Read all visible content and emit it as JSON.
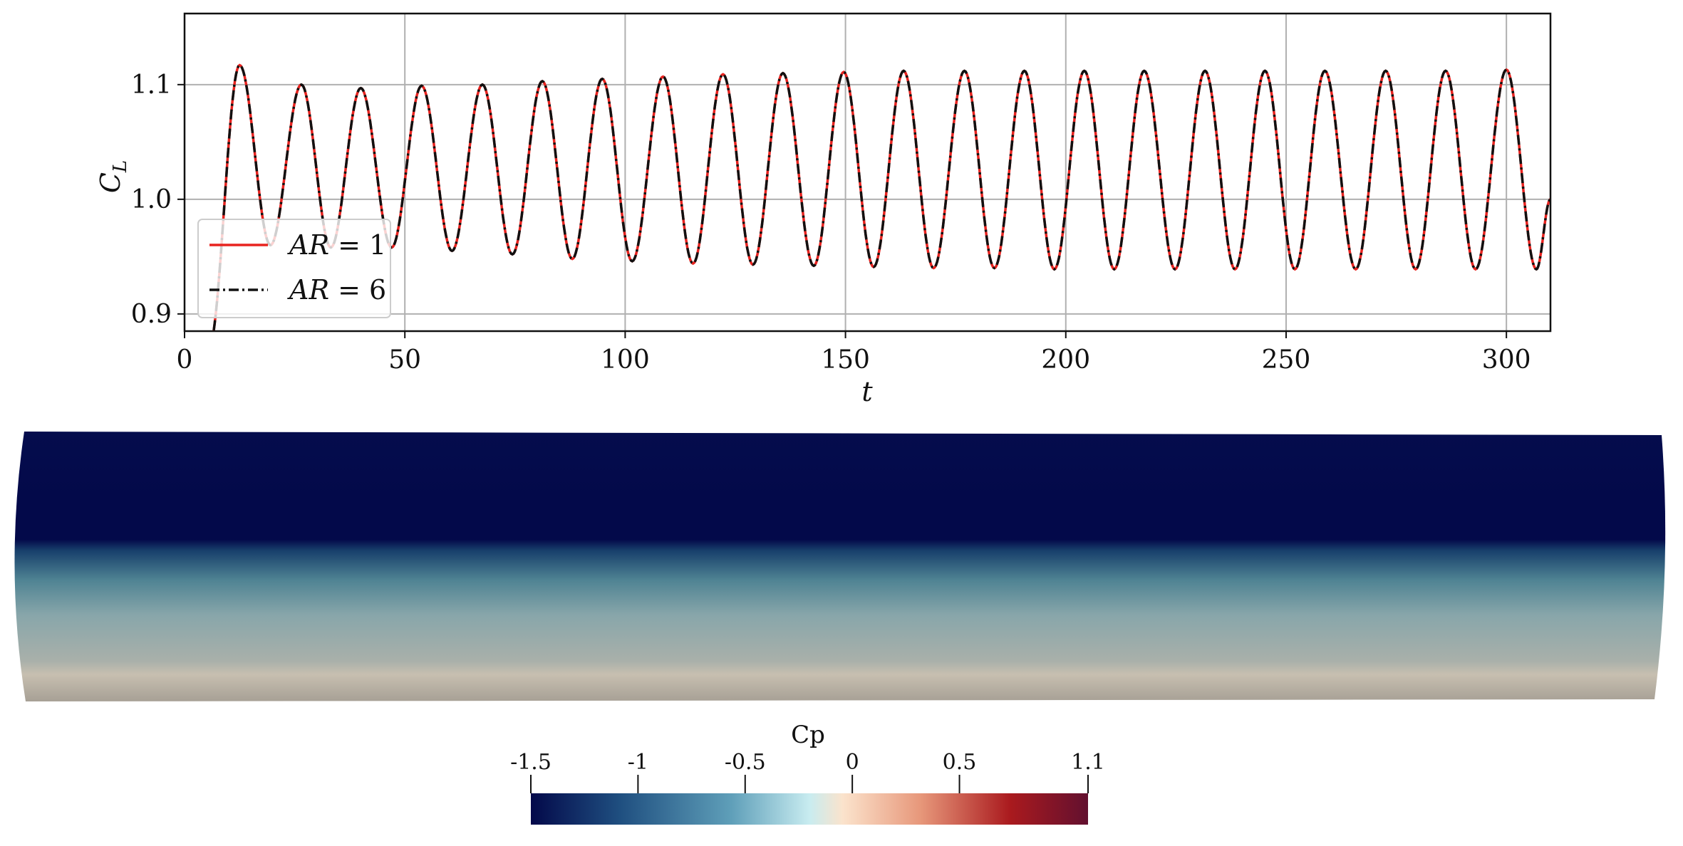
{
  "chart_data": {
    "type": "line",
    "xlabel": "t",
    "ylabel": "C_L",
    "xlim": [
      0,
      310
    ],
    "ylim": [
      0.885,
      1.162
    ],
    "xticks": [
      0,
      50,
      100,
      150,
      200,
      250,
      300
    ],
    "xtick_labels": [
      "0",
      "50",
      "100",
      "150",
      "200",
      "250",
      "300"
    ],
    "yticks": [
      0.9,
      1.0,
      1.1
    ],
    "ytick_labels": [
      "0.9",
      "1.0",
      "1.1"
    ],
    "grid": true,
    "legend_position": "lower-left",
    "period": 13.6,
    "peaks": [
      {
        "t": 12.5,
        "v": 1.117
      },
      {
        "t": 26.5,
        "v": 1.1
      },
      {
        "t": 40.0,
        "v": 1.097
      },
      {
        "t": 53.8,
        "v": 1.099
      },
      {
        "t": 67.6,
        "v": 1.1
      },
      {
        "t": 81.2,
        "v": 1.103
      },
      {
        "t": 94.8,
        "v": 1.105
      },
      {
        "t": 108.6,
        "v": 1.107
      },
      {
        "t": 122.2,
        "v": 1.109
      },
      {
        "t": 135.8,
        "v": 1.11
      },
      {
        "t": 149.6,
        "v": 1.111
      },
      {
        "t": 163.2,
        "v": 1.112
      },
      {
        "t": 177.0,
        "v": 1.112
      },
      {
        "t": 190.6,
        "v": 1.112
      },
      {
        "t": 204.2,
        "v": 1.112
      },
      {
        "t": 217.8,
        "v": 1.112
      },
      {
        "t": 231.6,
        "v": 1.112
      },
      {
        "t": 245.2,
        "v": 1.112
      },
      {
        "t": 258.8,
        "v": 1.112
      },
      {
        "t": 272.6,
        "v": 1.112
      },
      {
        "t": 286.2,
        "v": 1.112
      },
      {
        "t": 300.0,
        "v": 1.113
      }
    ],
    "troughs": [
      {
        "t": 5.5,
        "v": 0.87
      },
      {
        "t": 19.5,
        "v": 0.96
      },
      {
        "t": 33.2,
        "v": 0.958
      },
      {
        "t": 47.0,
        "v": 0.958
      },
      {
        "t": 60.7,
        "v": 0.955
      },
      {
        "t": 74.4,
        "v": 0.952
      },
      {
        "t": 88.0,
        "v": 0.948
      },
      {
        "t": 101.6,
        "v": 0.946
      },
      {
        "t": 115.4,
        "v": 0.944
      },
      {
        "t": 129.0,
        "v": 0.943
      },
      {
        "t": 142.8,
        "v": 0.942
      },
      {
        "t": 156.4,
        "v": 0.941
      },
      {
        "t": 170.0,
        "v": 0.94
      },
      {
        "t": 183.8,
        "v": 0.94
      },
      {
        "t": 197.4,
        "v": 0.939
      },
      {
        "t": 211.0,
        "v": 0.939
      },
      {
        "t": 224.8,
        "v": 0.939
      },
      {
        "t": 238.4,
        "v": 0.939
      },
      {
        "t": 252.0,
        "v": 0.939
      },
      {
        "t": 265.8,
        "v": 0.939
      },
      {
        "t": 279.4,
        "v": 0.939
      },
      {
        "t": 293.0,
        "v": 0.939
      },
      {
        "t": 306.8,
        "v": 0.939
      }
    ],
    "end": {
      "t": 310,
      "v": 1.0
    },
    "series": [
      {
        "name": "AR = 1",
        "legend_main": "AR",
        "legend_rest": " = 1",
        "color": "#e8231f",
        "style": "solid"
      },
      {
        "name": "AR = 6",
        "legend_main": "AR",
        "legend_rest": " = 6",
        "color": "#111111",
        "style": "dashdot"
      }
    ]
  },
  "field": {
    "colors": {
      "upper": "#03094a",
      "lower": "#a9b0aa",
      "base": "#cfc4b1"
    }
  },
  "colorbar": {
    "title": "Cp",
    "range": [
      -1.5,
      1.1
    ],
    "ticks": [
      -1.5,
      -1,
      -0.5,
      0,
      0.5,
      1.1
    ],
    "tick_labels": [
      "-1.5",
      "-1",
      "-0.5",
      "0",
      "0.5",
      "1.1"
    ],
    "colors": [
      "#03094a",
      "#1f4f80",
      "#5f9fb9",
      "#c8ecf0",
      "#fbe3cc",
      "#e7977a",
      "#aa1a1e",
      "#62102f"
    ]
  }
}
